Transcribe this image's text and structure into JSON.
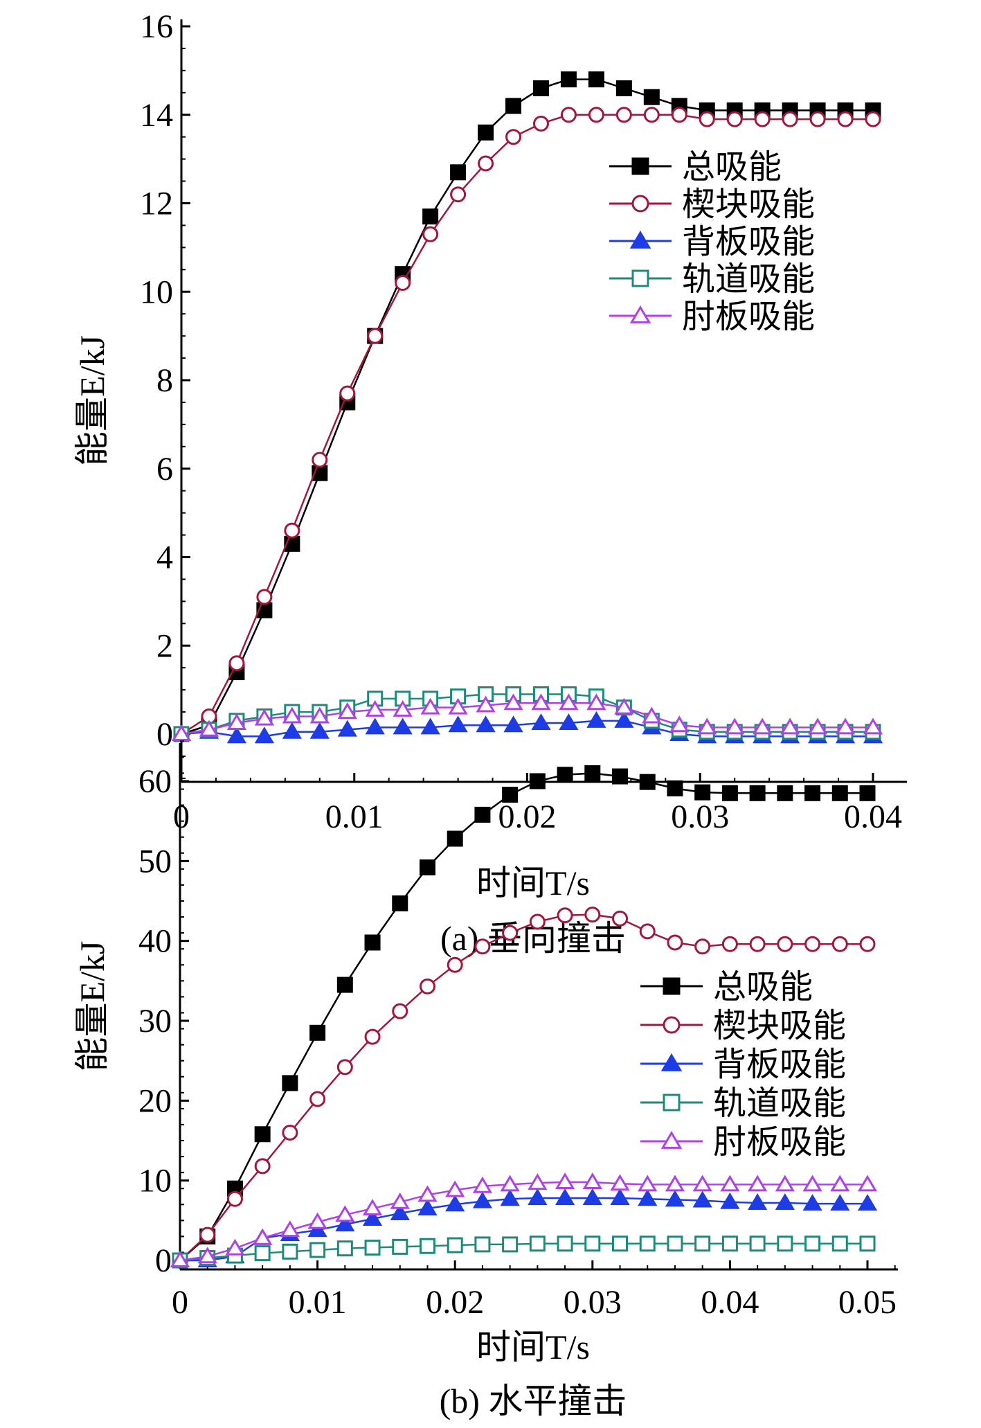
{
  "chart_data": [
    {
      "type": "line",
      "title": "",
      "caption": "(a) 垂向撞击",
      "xlabel": "时间T/s",
      "ylabel": "能量E/kJ",
      "xlim": [
        0,
        0.042
      ],
      "ylim": [
        -1,
        16
      ],
      "xticks": [
        "0",
        "0.01",
        "0.02",
        "0.03",
        "0.04"
      ],
      "xtick_values": [
        0,
        0.01,
        0.02,
        0.03,
        0.04
      ],
      "yticks": [
        "0",
        "2",
        "4",
        "6",
        "8",
        "10",
        "12",
        "14",
        "16"
      ],
      "ytick_values": [
        0,
        2,
        4,
        6,
        8,
        10,
        12,
        14,
        16
      ],
      "legend_position": "right-middle",
      "x": [
        0,
        0.0016,
        0.0032,
        0.0048,
        0.0064,
        0.008,
        0.0096,
        0.0112,
        0.0128,
        0.0144,
        0.016,
        0.0176,
        0.0192,
        0.0208,
        0.0224,
        0.024,
        0.0256,
        0.0272,
        0.0288,
        0.0304,
        0.032,
        0.0336,
        0.0352,
        0.0368,
        0.0384,
        0.04
      ],
      "series": [
        {
          "name": "总吸能",
          "marker": "square-filled",
          "color": "#000000",
          "values": [
            0,
            0.2,
            1.4,
            2.8,
            4.3,
            5.9,
            7.5,
            9.0,
            10.4,
            11.7,
            12.7,
            13.6,
            14.2,
            14.6,
            14.8,
            14.8,
            14.6,
            14.4,
            14.2,
            14.1,
            14.1,
            14.1,
            14.1,
            14.1,
            14.1,
            14.1
          ]
        },
        {
          "name": "楔块吸能",
          "marker": "circle-open",
          "color": "#a0183c",
          "values": [
            0,
            0.4,
            1.6,
            3.1,
            4.6,
            6.2,
            7.7,
            9.0,
            10.2,
            11.3,
            12.2,
            12.9,
            13.5,
            13.8,
            14.0,
            14.0,
            14.0,
            14.0,
            14.0,
            13.9,
            13.9,
            13.9,
            13.9,
            13.9,
            13.9,
            13.9
          ]
        },
        {
          "name": "背板吸能",
          "marker": "triangle-filled",
          "color": "#1e3ce6",
          "values": [
            0,
            0.05,
            -0.05,
            -0.05,
            0.05,
            0.05,
            0.1,
            0.15,
            0.15,
            0.15,
            0.2,
            0.2,
            0.2,
            0.25,
            0.25,
            0.3,
            0.3,
            0.15,
            0,
            -0.05,
            -0.05,
            -0.05,
            -0.05,
            -0.05,
            -0.05,
            -0.05
          ]
        },
        {
          "name": "轨道吸能",
          "marker": "square-open",
          "color": "#1f8a7a",
          "values": [
            0,
            0.1,
            0.3,
            0.4,
            0.5,
            0.5,
            0.6,
            0.8,
            0.8,
            0.8,
            0.85,
            0.9,
            0.9,
            0.9,
            0.9,
            0.85,
            0.6,
            0.3,
            0.1,
            0.05,
            0.05,
            0.05,
            0.05,
            0.05,
            0.05,
            0.05
          ]
        },
        {
          "name": "肘板吸能",
          "marker": "triangle-open",
          "color": "#b040e8",
          "values": [
            0,
            0.1,
            0.25,
            0.35,
            0.4,
            0.4,
            0.5,
            0.55,
            0.55,
            0.6,
            0.6,
            0.65,
            0.7,
            0.7,
            0.7,
            0.7,
            0.6,
            0.4,
            0.2,
            0.15,
            0.15,
            0.15,
            0.15,
            0.15,
            0.15,
            0.15
          ]
        }
      ]
    },
    {
      "type": "line",
      "title": "",
      "caption": "(b) 水平撞击",
      "xlabel": "时间T/s",
      "ylabel": "能量E/kJ",
      "xlim": [
        0,
        0.0525
      ],
      "ylim": [
        -1,
        65
      ],
      "xticks": [
        "0",
        "0.01",
        "0.02",
        "0.03",
        "0.04",
        "0.05"
      ],
      "xtick_values": [
        0,
        0.01,
        0.02,
        0.03,
        0.04,
        0.05
      ],
      "yticks": [
        "0",
        "10",
        "20",
        "30",
        "40",
        "50",
        "60"
      ],
      "ytick_values": [
        0,
        10,
        20,
        30,
        40,
        50,
        60
      ],
      "legend_position": "right-middle",
      "x": [
        0,
        0.002,
        0.004,
        0.006,
        0.008,
        0.01,
        0.012,
        0.014,
        0.016,
        0.018,
        0.02,
        0.022,
        0.024,
        0.026,
        0.028,
        0.03,
        0.032,
        0.034,
        0.036,
        0.038,
        0.04,
        0.042,
        0.044,
        0.046,
        0.048,
        0.05
      ],
      "series": [
        {
          "name": "总吸能",
          "marker": "square-filled",
          "color": "#000000",
          "values": [
            0,
            3,
            9,
            15.8,
            22.2,
            28.5,
            34.5,
            39.8,
            44.7,
            49.2,
            52.8,
            55.8,
            58.3,
            60,
            60.8,
            61,
            60.6,
            59.9,
            59.1,
            58.6,
            58.5,
            58.5,
            58.5,
            58.5,
            58.5,
            58.5
          ]
        },
        {
          "name": "楔块吸能",
          "marker": "circle-open",
          "color": "#a0183c",
          "values": [
            0,
            3.2,
            7.7,
            11.8,
            16,
            20.2,
            24.2,
            28,
            31.2,
            34.3,
            37,
            39.3,
            41,
            42.4,
            43.2,
            43.3,
            42.8,
            41.2,
            39.8,
            39.3,
            39.6,
            39.6,
            39.6,
            39.6,
            39.6,
            39.6
          ]
        },
        {
          "name": "背板吸能",
          "marker": "triangle-filled",
          "color": "#1e3ce6",
          "values": [
            0,
            0,
            0.5,
            2.8,
            3.3,
            3.8,
            4.5,
            5.2,
            5.9,
            6.5,
            7,
            7.4,
            7.7,
            7.8,
            7.8,
            7.8,
            7.8,
            7.7,
            7.6,
            7.5,
            7.3,
            7.2,
            7.2,
            7.1,
            7.1,
            7.1
          ]
        },
        {
          "name": "轨道吸能",
          "marker": "square-open",
          "color": "#1f8a7a",
          "values": [
            0,
            0.3,
            0.6,
            0.9,
            1.1,
            1.3,
            1.5,
            1.6,
            1.7,
            1.8,
            1.9,
            2,
            2,
            2.1,
            2.1,
            2.1,
            2.1,
            2.1,
            2.1,
            2.1,
            2.1,
            2.1,
            2.1,
            2.1,
            2.1,
            2.1
          ]
        },
        {
          "name": "肘板吸能",
          "marker": "triangle-open",
          "color": "#b040e8",
          "values": [
            0,
            0.5,
            1.5,
            2.8,
            3.8,
            4.8,
            5.7,
            6.5,
            7.3,
            8.2,
            8.8,
            9.3,
            9.5,
            9.7,
            9.8,
            9.8,
            9.6,
            9.5,
            9.5,
            9.5,
            9.5,
            9.5,
            9.5,
            9.5,
            9.5,
            9.5
          ]
        }
      ]
    }
  ]
}
